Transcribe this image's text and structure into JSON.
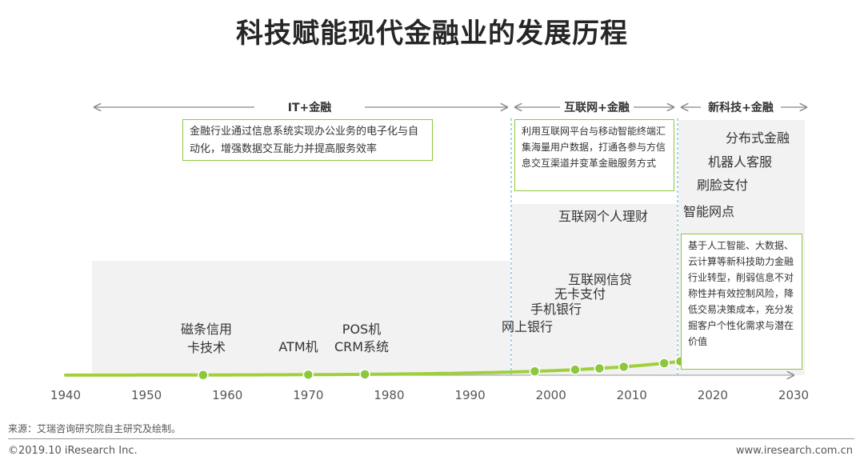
{
  "title": "科技赋能现代金融业的发展历程",
  "eras": [
    {
      "label": "IT+金融"
    },
    {
      "label": "互联网+金融"
    },
    {
      "label": "新科技+金融"
    }
  ],
  "boxes": [
    {
      "text": "金融行业通过信息系统实现办公业务的电子化与自动化，增强数据交互能力并提高服务效率"
    },
    {
      "text": "利用互联网平台与移动智能终端汇集海量用户数据，打通各参与方信息交互渠道并变革金融服务方式"
    },
    {
      "text": "基于人工智能、大数据、云计算等新科技助力金融行业转型，削弱信息不对称性并有效控制风险，降低交易决策成本，充分发掘客户个性化需求与潜在价值"
    }
  ],
  "chart_data": {
    "type": "line",
    "x_ticks": [
      "1940",
      "1950",
      "1960",
      "1970",
      "1980",
      "1990",
      "2000",
      "2010",
      "2020",
      "2030"
    ],
    "xlim": [
      1940,
      2030
    ],
    "milestones": [
      {
        "x": 1957,
        "label": "磁条信用卡技术"
      },
      {
        "x": 1970,
        "label": "ATM机"
      },
      {
        "x": 1977,
        "label": "POS机 CRM系统"
      },
      {
        "x": 1998,
        "label": "网上银行"
      },
      {
        "x": 2003,
        "label": "手机银行"
      },
      {
        "x": 2006,
        "label": "无卡支付"
      },
      {
        "x": 2009,
        "label": "互联网信贷"
      },
      {
        "x": 2014,
        "label": "互联网个人理财"
      },
      {
        "x": 2016,
        "label": "智能网点"
      },
      {
        "x": 2017,
        "label": "刷脸支付"
      },
      {
        "x": 2018,
        "label": "机器人客服"
      },
      {
        "x": 2019,
        "label": "分布式金融"
      }
    ]
  },
  "footer": {
    "source": "来源：艾瑞咨询研究院自主研究及绘制。",
    "copyright": "©2019.10 iResearch Inc.",
    "url": "www.iresearch.com.cn"
  },
  "colors": {
    "accent": "#8dc63f",
    "shade": "#f2f2f2",
    "divider": "#5bc0de"
  }
}
